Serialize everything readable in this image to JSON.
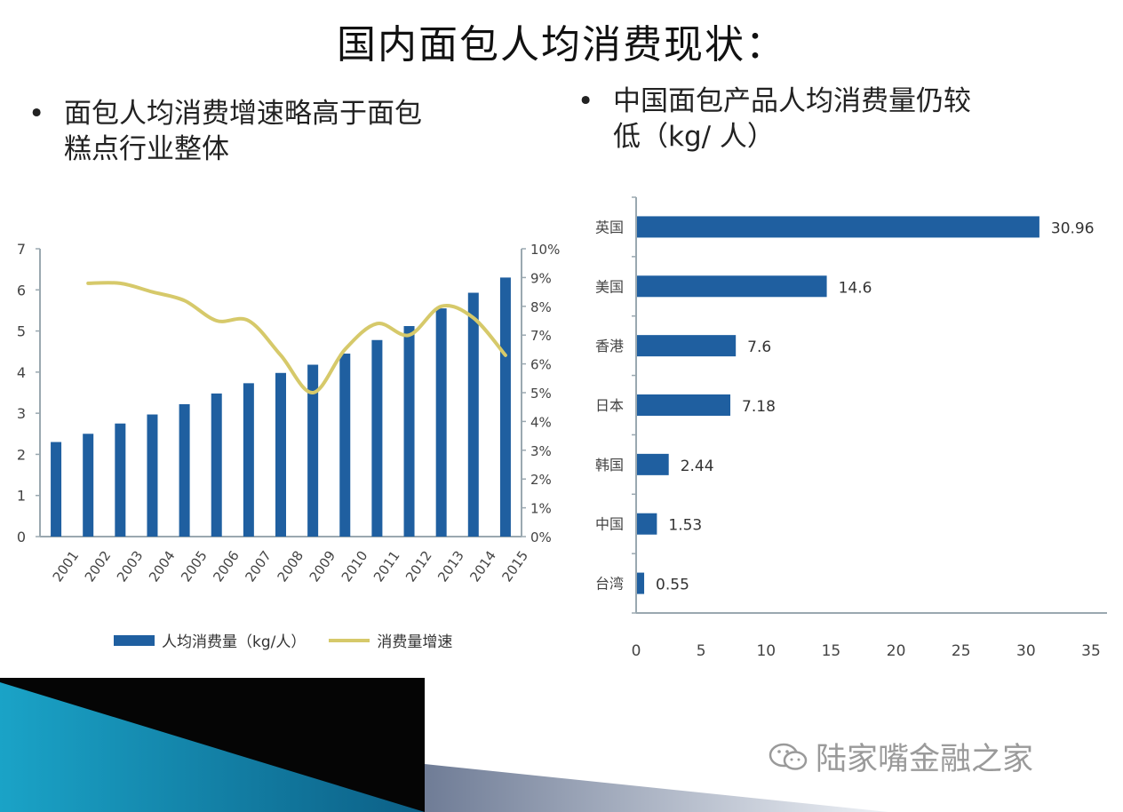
{
  "title": "国内面包人均消费现状：",
  "bullets": {
    "left_symbol": "•",
    "left_line1": "面包人均消费增速略高于面包",
    "left_line2": "糕点行业整体",
    "right_symbol": "•",
    "right_line1": "中国面包产品人均消费量仍较",
    "right_line2": "低（kg/ 人）"
  },
  "legend": {
    "bar_label": "人均消费量（kg/人）",
    "line_label": "消费量增速"
  },
  "watermark": {
    "text": "陆家嘴金融之家",
    "icon": "wechat-icon"
  },
  "colors": {
    "bar": "#1f5fa0",
    "line": "#d6c96a",
    "axis": "#9aa8b0"
  },
  "chart_data": [
    {
      "type": "bar+line",
      "categories": [
        "2001",
        "2002",
        "2003",
        "2004",
        "2005",
        "2006",
        "2007",
        "2008",
        "2009",
        "2010",
        "2011",
        "2012",
        "2013",
        "2014",
        "2015"
      ],
      "series": [
        {
          "name": "人均消费量（kg/人）",
          "type": "bar",
          "axis": "left",
          "values": [
            2.3,
            2.5,
            2.75,
            2.97,
            3.22,
            3.48,
            3.73,
            3.98,
            4.18,
            4.45,
            4.78,
            5.12,
            5.55,
            5.93,
            6.3
          ]
        },
        {
          "name": "消费量增速",
          "type": "line",
          "axis": "right",
          "values": [
            null,
            8.8,
            8.8,
            8.5,
            8.2,
            7.5,
            7.5,
            6.3,
            5.0,
            6.5,
            7.4,
            7.0,
            8.0,
            7.6,
            6.3
          ]
        }
      ],
      "y_left": {
        "ylim": [
          0,
          7
        ],
        "ticks": [
          "0",
          "1",
          "2",
          "3",
          "4",
          "5",
          "6",
          "7"
        ]
      },
      "y_right": {
        "ylim": [
          0,
          10
        ],
        "ticks": [
          "0%",
          "1%",
          "2%",
          "3%",
          "4%",
          "5%",
          "6%",
          "7%",
          "8%",
          "9%",
          "10%"
        ]
      },
      "legend_position": "bottom",
      "grid": false
    },
    {
      "type": "bar",
      "orientation": "horizontal",
      "categories": [
        "英国",
        "美国",
        "香港",
        "日本",
        "韩国",
        "中国",
        "台湾"
      ],
      "values": [
        30.96,
        14.6,
        7.6,
        7.18,
        2.44,
        1.53,
        0.55
      ],
      "value_labels": [
        "30.96",
        "14.6",
        "7.6",
        "7.18",
        "2.44",
        "1.53",
        "0.55"
      ],
      "xlim": [
        0,
        35
      ],
      "xticks": [
        "0",
        "5",
        "10",
        "15",
        "20",
        "25",
        "30",
        "35"
      ],
      "grid": false
    }
  ]
}
